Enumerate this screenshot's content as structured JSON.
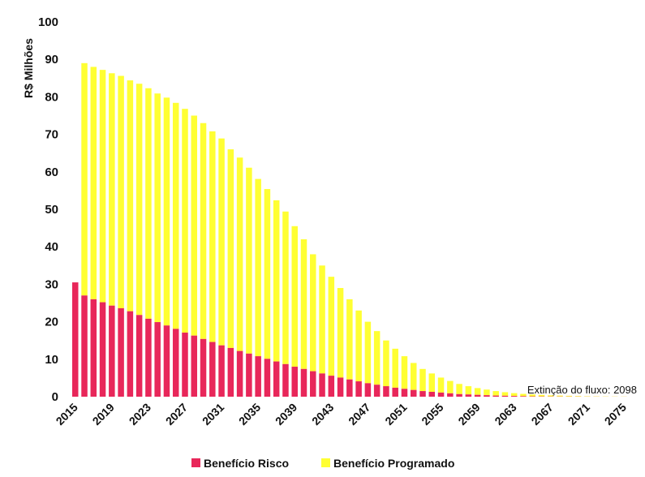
{
  "chart_data": {
    "type": "bar",
    "stacked": true,
    "ylabel": "R$ Milhões",
    "xlabel": "",
    "ylim": [
      0,
      100
    ],
    "y_ticks": [
      0,
      10,
      20,
      30,
      40,
      50,
      60,
      70,
      80,
      90,
      100
    ],
    "x_tick_labels": [
      "2015",
      "2019",
      "2023",
      "2027",
      "2031",
      "2035",
      "2039",
      "2043",
      "2047",
      "2051",
      "2055",
      "2059",
      "2063",
      "2067",
      "2071",
      "2075"
    ],
    "annotation": "Extinção do fluxo: 2098",
    "legend_position": "bottom",
    "grid": false,
    "x_start": 2015,
    "series": [
      {
        "name": "Benefício Risco",
        "color": "#e8275a",
        "values": [
          30.5,
          27,
          26,
          25.2,
          24.3,
          23.6,
          22.8,
          21.8,
          20.8,
          19.9,
          19,
          18.1,
          17.1,
          16.3,
          15.4,
          14.6,
          13.7,
          13.0,
          12.2,
          11.5,
          10.8,
          10.1,
          9.4,
          8.7,
          8.0,
          7.4,
          6.8,
          6.2,
          5.6,
          5.1,
          4.6,
          4.1,
          3.6,
          3.2,
          2.8,
          2.4,
          2.1,
          1.8,
          1.5,
          1.3,
          1.1,
          0.9,
          0.7,
          0.6,
          0.5,
          0.4,
          0.3,
          0.25,
          0.2,
          0.15,
          0.1,
          0.08,
          0.06,
          0.05,
          0.04,
          0.03,
          0.02,
          0.02,
          0.01,
          0.01,
          0.01
        ]
      },
      {
        "name": "Benefício Programado",
        "color": "#ffff33",
        "values": [
          0,
          62,
          62,
          62,
          62,
          62,
          61.6,
          61.7,
          61.5,
          61.0,
          60.8,
          60.3,
          59.7,
          58.7,
          57.6,
          56.2,
          55.2,
          53.0,
          51.6,
          49.6,
          47.3,
          45.3,
          43.0,
          40.7,
          37.5,
          34.6,
          31.2,
          28.8,
          26.4,
          23.9,
          21.4,
          18.9,
          16.4,
          14.3,
          12.2,
          10.4,
          8.7,
          7.2,
          5.9,
          4.9,
          4.0,
          3.3,
          2.7,
          2.2,
          1.8,
          1.5,
          1.2,
          0.95,
          0.75,
          0.6,
          0.5,
          0.4,
          0.3,
          0.25,
          0.2,
          0.15,
          0.1,
          0.08,
          0.06,
          0.05,
          0.04
        ]
      }
    ]
  }
}
